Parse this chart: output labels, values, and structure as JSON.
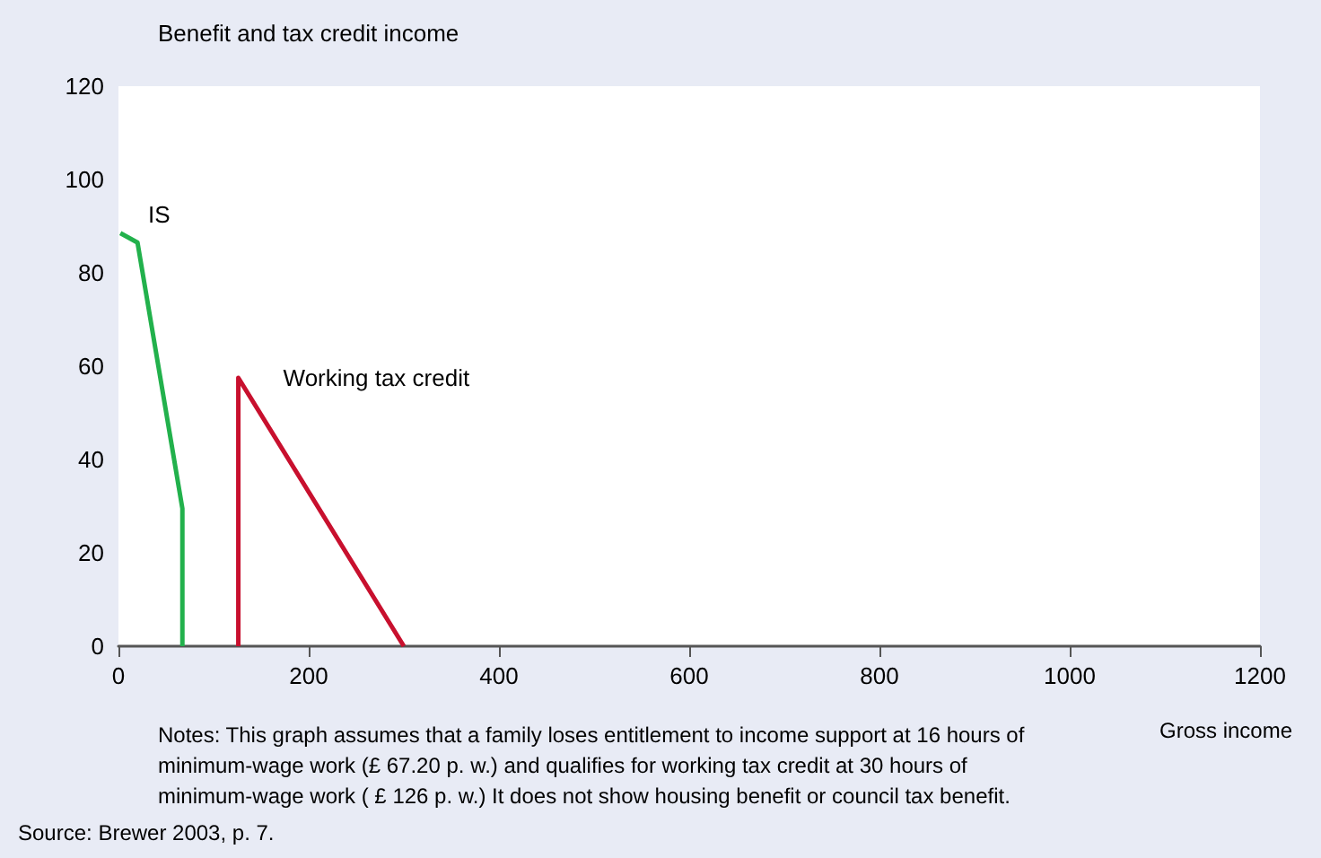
{
  "chart_data": {
    "type": "line",
    "xlabel": "Gross income",
    "ylabel": "Benefit and tax credit income",
    "series": [
      {
        "name": "IS",
        "color": "#22b14c",
        "x": [
          2,
          20,
          67.2,
          67.2
        ],
        "values": [
          88.5,
          86.5,
          29.5,
          0
        ]
      },
      {
        "name": "Working tax credit",
        "color": "#c8102e",
        "x": [
          126,
          126,
          300
        ],
        "values": [
          0,
          57.5,
          0
        ]
      }
    ],
    "xlim": [
      0,
      1200
    ],
    "xticks": [
      0,
      200,
      400,
      600,
      800,
      1000,
      1200
    ],
    "ylim": [
      0,
      120
    ],
    "yticks": [
      0,
      20,
      40,
      60,
      80,
      100,
      120
    ],
    "grid": false,
    "legend": false,
    "marker": "none",
    "line_style": "solid",
    "annotations": [
      "Notes: This graph assumes that a family loses entitlement to income support at 16 hours of minimum-wage work (£ 67.20 p. w.) and qualifies for working tax credit at 30 hours of minimum-wage work ( £ 126 p. w.) It does not show housing benefit or council tax benefit.",
      "Source: Brewer 2003, p. 7."
    ]
  }
}
